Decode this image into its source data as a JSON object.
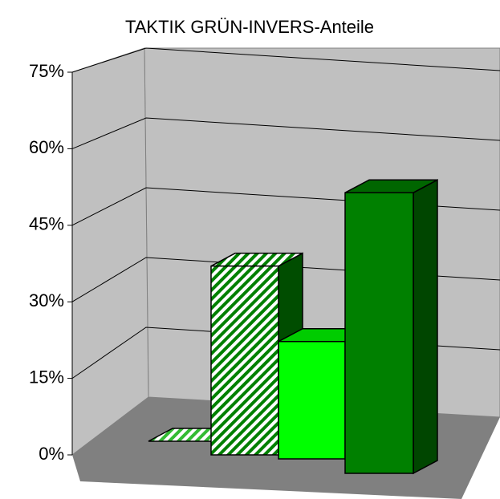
{
  "chart_data": {
    "type": "bar3d",
    "title": "TAKTIK GRÜN-INVERS-Anteile",
    "categories": [
      null,
      null,
      null,
      null
    ],
    "values": [
      0,
      37,
      23,
      55
    ],
    "colors": [
      "#ffffff",
      "#ffffff",
      "#00ff00",
      "#008000"
    ],
    "hatch": [
      true,
      true,
      false,
      false
    ],
    "hatch_colors": [
      "#33bb33",
      "#008000",
      null,
      null
    ],
    "ylim": [
      0,
      75
    ],
    "yticks": [
      {
        "value": 0,
        "label": "0%"
      },
      {
        "value": 15,
        "label": "15%"
      },
      {
        "value": 30,
        "label": "30%"
      },
      {
        "value": 45,
        "label": "45%"
      },
      {
        "value": 60,
        "label": "60%"
      },
      {
        "value": 75,
        "label": "75%"
      }
    ],
    "grid": true
  }
}
